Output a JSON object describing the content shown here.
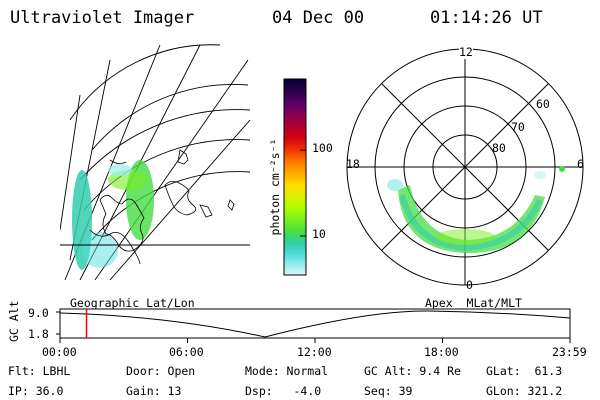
{
  "header": {
    "instrument": "Ultraviolet Imager",
    "date": "04 Dec 00",
    "time": "01:14:26 UT"
  },
  "colorbar": {
    "label": "photon cm⁻²s⁻¹",
    "ticks": [
      "100",
      "10"
    ],
    "colors": [
      "#000033",
      "#2a0044",
      "#550066",
      "#880055",
      "#b00030",
      "#d40010",
      "#ee3300",
      "#ff7700",
      "#ffaa00",
      "#ffdd00",
      "#ddee00",
      "#aaff00",
      "#77ee22",
      "#44dd44",
      "#33ccaa",
      "#55dddd",
      "#99eeee",
      "#d8f6f6"
    ]
  },
  "map_label": "Geographic Lat/Lon",
  "polar_plot": {
    "label": "Apex  MLat/MLT",
    "mlt_labels": {
      "top": "12",
      "right": "6",
      "bottom": "0",
      "left": "18"
    },
    "lat_labels": [
      "60",
      "70",
      "80"
    ]
  },
  "timeline": {
    "axis_label": "GC Alt",
    "y_ticks": [
      "9.0",
      "1.8"
    ],
    "x_ticks": [
      "00:00",
      "06:00",
      "12:00",
      "18:00",
      "23:59"
    ],
    "current_fraction": 0.052
  },
  "info": {
    "filter": "Flt: LBHL",
    "ip": "IP: 36.0",
    "door": "Door: Open",
    "gain": "Gain: 13",
    "mode": "Mode: Normal",
    "dsp": "Dsp:   -4.0",
    "gc_alt": "GC Alt: 9.4 Re",
    "seq": "Seq: 39",
    "glat": "GLat:  61.3",
    "glon": "GLon: 321.2"
  }
}
